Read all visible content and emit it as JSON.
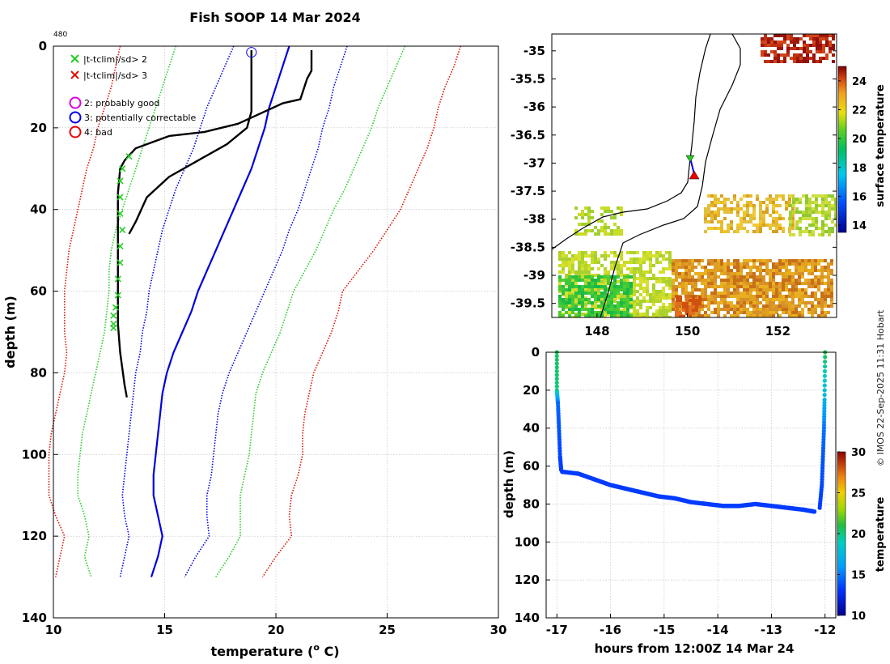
{
  "title": "Fish SOOP 14 Mar 2024",
  "profile_id": "480",
  "credit": "© IMOS 22-Sep-2025 11:31 Hobart",
  "colors": {
    "obs": "#000000",
    "clim_mean": "#0000dd",
    "clim_1sd": "#0000dd",
    "clim_2sd": "#22cc22",
    "clim_3sd": "#dd1100",
    "flag_good": "#dd00dd",
    "flag_correctable": "#0000ee",
    "flag_bad": "#ee0000"
  },
  "legend": {
    "x_labels": [
      "|t-tclim|/sd> 2",
      "|t-tclim|/sd> 3"
    ],
    "circle_labels": [
      "2: probably good",
      "3: potentially correctable",
      "4: bad"
    ]
  },
  "chart_data": [
    {
      "type": "line",
      "title": "Fish SOOP 14 Mar 2024",
      "xlabel": "temperature (°C)",
      "xlabel_prefix": "temperature (",
      "xlabel_sup": "o",
      "xlabel_suffix": " C)",
      "ylabel": "depth (m)",
      "xlim": [
        10,
        30
      ],
      "ylim": [
        140,
        0
      ],
      "xticks": [
        "10",
        "15",
        "20",
        "25",
        "30"
      ],
      "yticks": [
        "0",
        "20",
        "40",
        "60",
        "80",
        "100",
        "120",
        "140"
      ],
      "grid": true,
      "depth": [
        0,
        5,
        10,
        15,
        20,
        25,
        30,
        35,
        40,
        45,
        50,
        55,
        60,
        65,
        70,
        75,
        80,
        85,
        90,
        95,
        100,
        105,
        110,
        115,
        120,
        125,
        130
      ],
      "clim": {
        "mean": [
          20.6,
          20.3,
          20.0,
          19.7,
          19.5,
          19.2,
          18.9,
          18.5,
          18.1,
          17.7,
          17.3,
          16.9,
          16.5,
          16.2,
          15.8,
          15.4,
          15.1,
          14.9,
          14.8,
          14.7,
          14.6,
          14.5,
          14.5,
          14.7,
          14.9,
          14.7,
          14.4
        ],
        "minus1sd": [
          18.1,
          17.7,
          17.3,
          16.9,
          16.6,
          16.3,
          15.9,
          15.5,
          15.2,
          14.9,
          14.7,
          14.5,
          14.3,
          14.2,
          14.0,
          13.9,
          13.7,
          13.6,
          13.5,
          13.4,
          13.3,
          13.2,
          13.1,
          13.2,
          13.4,
          13.2,
          13.0
        ],
        "plus1sd": [
          23.2,
          22.9,
          22.6,
          22.4,
          22.1,
          21.9,
          21.6,
          21.3,
          21.0,
          20.6,
          20.3,
          19.9,
          19.5,
          19.1,
          18.7,
          18.3,
          17.9,
          17.6,
          17.4,
          17.3,
          17.2,
          17.1,
          16.9,
          16.9,
          17.0,
          16.4,
          15.9
        ],
        "minus2sd": [
          15.5,
          15.2,
          14.9,
          14.6,
          14.3,
          14.0,
          13.7,
          13.4,
          13.1,
          12.8,
          12.6,
          12.5,
          12.5,
          12.4,
          12.3,
          12.1,
          11.9,
          11.7,
          11.5,
          11.3,
          11.2,
          11.1,
          11.1,
          11.4,
          11.6,
          11.4,
          11.7
        ],
        "plus2sd": [
          25.8,
          25.4,
          25.0,
          24.6,
          24.3,
          23.9,
          23.5,
          23.1,
          22.6,
          22.2,
          21.8,
          21.3,
          20.8,
          20.5,
          20.2,
          19.8,
          19.4,
          19.1,
          19.0,
          18.9,
          18.8,
          18.6,
          18.4,
          18.4,
          18.4,
          17.9,
          17.3
        ],
        "minus3sd": [
          13.0,
          12.8,
          12.6,
          12.3,
          12.0,
          11.8,
          11.5,
          11.3,
          11.1,
          10.9,
          10.7,
          10.6,
          10.5,
          10.5,
          10.5,
          10.6,
          10.5,
          10.3,
          10.1,
          9.9,
          9.8,
          9.8,
          9.8,
          10.1,
          10.5,
          10.3,
          10.1
        ],
        "plus3sd": [
          28.3,
          28.0,
          27.6,
          27.3,
          27.1,
          26.8,
          26.4,
          26.0,
          25.6,
          25.0,
          24.4,
          23.7,
          23.0,
          22.8,
          22.5,
          22.1,
          21.7,
          21.5,
          21.3,
          21.2,
          21.2,
          21.0,
          20.7,
          20.6,
          20.7,
          20.0,
          19.4
        ]
      },
      "observed": [
        [
          21.6,
          1
        ],
        [
          21.6,
          6
        ],
        [
          21.4,
          8
        ],
        [
          21.1,
          13
        ],
        [
          20.3,
          14
        ],
        [
          19.5,
          16
        ],
        [
          18.3,
          19
        ],
        [
          16.8,
          21
        ],
        [
          15.2,
          22
        ],
        [
          13.7,
          25
        ],
        [
          13.2,
          28
        ],
        [
          13.0,
          30
        ],
        [
          12.9,
          36
        ],
        [
          12.9,
          44
        ],
        [
          12.9,
          52
        ],
        [
          12.9,
          60
        ],
        [
          12.9,
          68
        ],
        [
          13.0,
          75
        ],
        [
          13.1,
          79
        ],
        [
          13.2,
          83
        ],
        [
          13.3,
          86
        ]
      ],
      "observed_downcast": [
        [
          18.9,
          1
        ],
        [
          18.9,
          16
        ],
        [
          18.7,
          20
        ],
        [
          17.8,
          24
        ],
        [
          16.5,
          28
        ],
        [
          15.2,
          32
        ],
        [
          14.2,
          37
        ],
        [
          13.7,
          43
        ],
        [
          13.4,
          46
        ]
      ],
      "flag_markers_x2": [
        [
          13.4,
          27
        ],
        [
          13.1,
          30
        ],
        [
          13.0,
          33
        ],
        [
          13.0,
          37
        ],
        [
          13.0,
          41
        ],
        [
          13.1,
          45
        ],
        [
          13.0,
          49
        ],
        [
          13.0,
          53
        ],
        [
          12.9,
          57
        ],
        [
          12.9,
          61
        ],
        [
          12.8,
          64
        ],
        [
          12.7,
          66
        ],
        [
          12.7,
          68
        ],
        [
          12.7,
          69
        ]
      ],
      "flag_circle": [
        18.9,
        1.5
      ]
    },
    {
      "type": "heatmap",
      "xlim": [
        147.0,
        153.3
      ],
      "ylim": [
        -39.75,
        -34.7
      ],
      "xticks": [
        "148",
        "150",
        "152"
      ],
      "yticks": [
        "-35",
        "-35.5",
        "-36",
        "-36.5",
        "-37",
        "-37.5",
        "-38",
        "-38.5",
        "-39",
        "-39.5"
      ],
      "colorbar": {
        "label": "surface temperature",
        "ticks": [
          "14",
          "16",
          "18",
          "20",
          "22",
          "24"
        ],
        "range": [
          13.5,
          25
        ]
      },
      "track_start": [
        150.05,
        -36.85
      ],
      "track_end": [
        150.12,
        -37.18
      ]
    },
    {
      "type": "scatter",
      "xlabel": "hours from 12:00Z 14 Mar 24",
      "ylabel": "depth (m)",
      "xlim": [
        -17.2,
        -11.8
      ],
      "ylim": [
        140,
        0
      ],
      "xticks": [
        "-17",
        "-16",
        "-15",
        "-14",
        "-13",
        "-12"
      ],
      "yticks": [
        "0",
        "20",
        "40",
        "60",
        "80",
        "100",
        "120",
        "140"
      ],
      "colorbar": {
        "label": "temperature",
        "ticks": [
          "10",
          "15",
          "20",
          "25",
          "30"
        ],
        "range": [
          10,
          30
        ]
      },
      "descent": [
        [
          -17.0,
          0,
          20.6
        ],
        [
          -17.0,
          20,
          20.0
        ],
        [
          -16.98,
          27,
          14.5
        ],
        [
          -16.96,
          40,
          14
        ],
        [
          -16.94,
          55,
          13.5
        ],
        [
          -16.92,
          62,
          13.3
        ]
      ],
      "bottom": [
        [
          -16.9,
          63
        ],
        [
          -16.6,
          64
        ],
        [
          -16.3,
          67
        ],
        [
          -16.0,
          70
        ],
        [
          -15.7,
          72
        ],
        [
          -15.4,
          74
        ],
        [
          -15.1,
          76
        ],
        [
          -14.8,
          77
        ],
        [
          -14.5,
          79
        ],
        [
          -14.2,
          80
        ],
        [
          -13.9,
          81
        ],
        [
          -13.6,
          81
        ],
        [
          -13.3,
          80
        ],
        [
          -13.0,
          81
        ],
        [
          -12.7,
          82
        ],
        [
          -12.4,
          83
        ],
        [
          -12.2,
          84
        ]
      ],
      "ascent": [
        [
          -12.1,
          82,
          13.3
        ],
        [
          -12.06,
          70,
          13.6
        ],
        [
          -12.04,
          55,
          14
        ],
        [
          -12.02,
          40,
          14.8
        ],
        [
          -12.01,
          25,
          17
        ],
        [
          -12.0,
          0,
          20.8
        ]
      ]
    }
  ]
}
